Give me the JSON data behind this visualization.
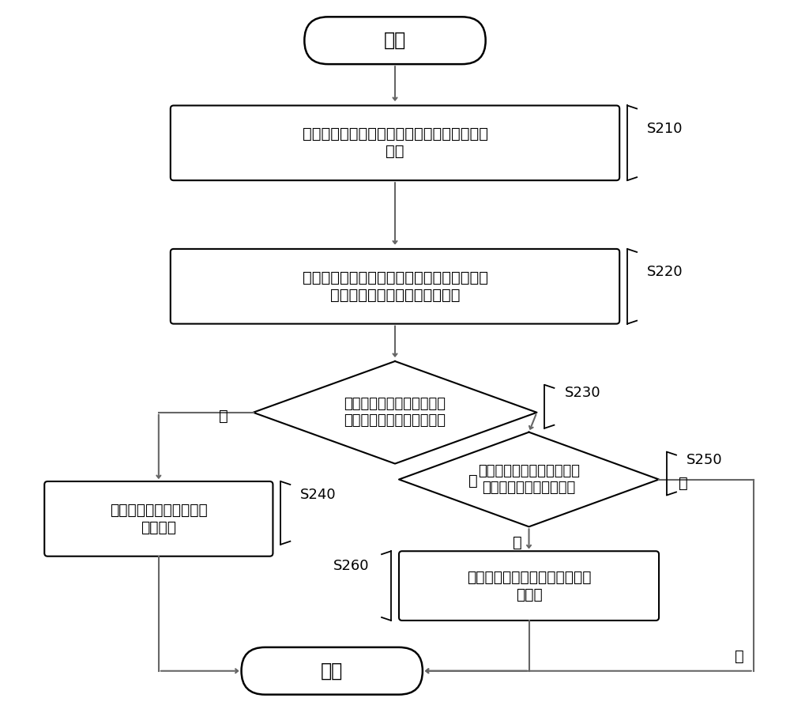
{
  "bg_color": "#ffffff",
  "line_color": "#000000",
  "text_color": "#000000",
  "arrow_color": "#666666",
  "font_size": 14,
  "label_font_size": 13,
  "start_text": "开始",
  "end_text": "结束",
  "box1_text": "接收来自服务器的关联有跳转动作属性的展示\n信息",
  "box1_label": "S210",
  "box2_text": "当检测到展示信息发生跳转触发事件时，获取\n与展示信息关联的跳转动作属性",
  "box2_label": "S220",
  "diamond1_text": "判断跳转动作属性中是否包\n括待跳转的目标页面的类型",
  "diamond1_label": "S230",
  "diamond1_yes": "是",
  "diamond1_no": "否",
  "box3_text": "根据所述类型跳转到所述\n目标页面",
  "box3_label": "S240",
  "diamond2_text": "判断跳转动作属性中是否包\n括待跳转的功能接口信息",
  "diamond2_label": "S250",
  "diamond2_yes": "是",
  "diamond2_no": "否",
  "box4_text": "根据功能接口信息调用相应的功\n能接口",
  "box4_label": "S260"
}
